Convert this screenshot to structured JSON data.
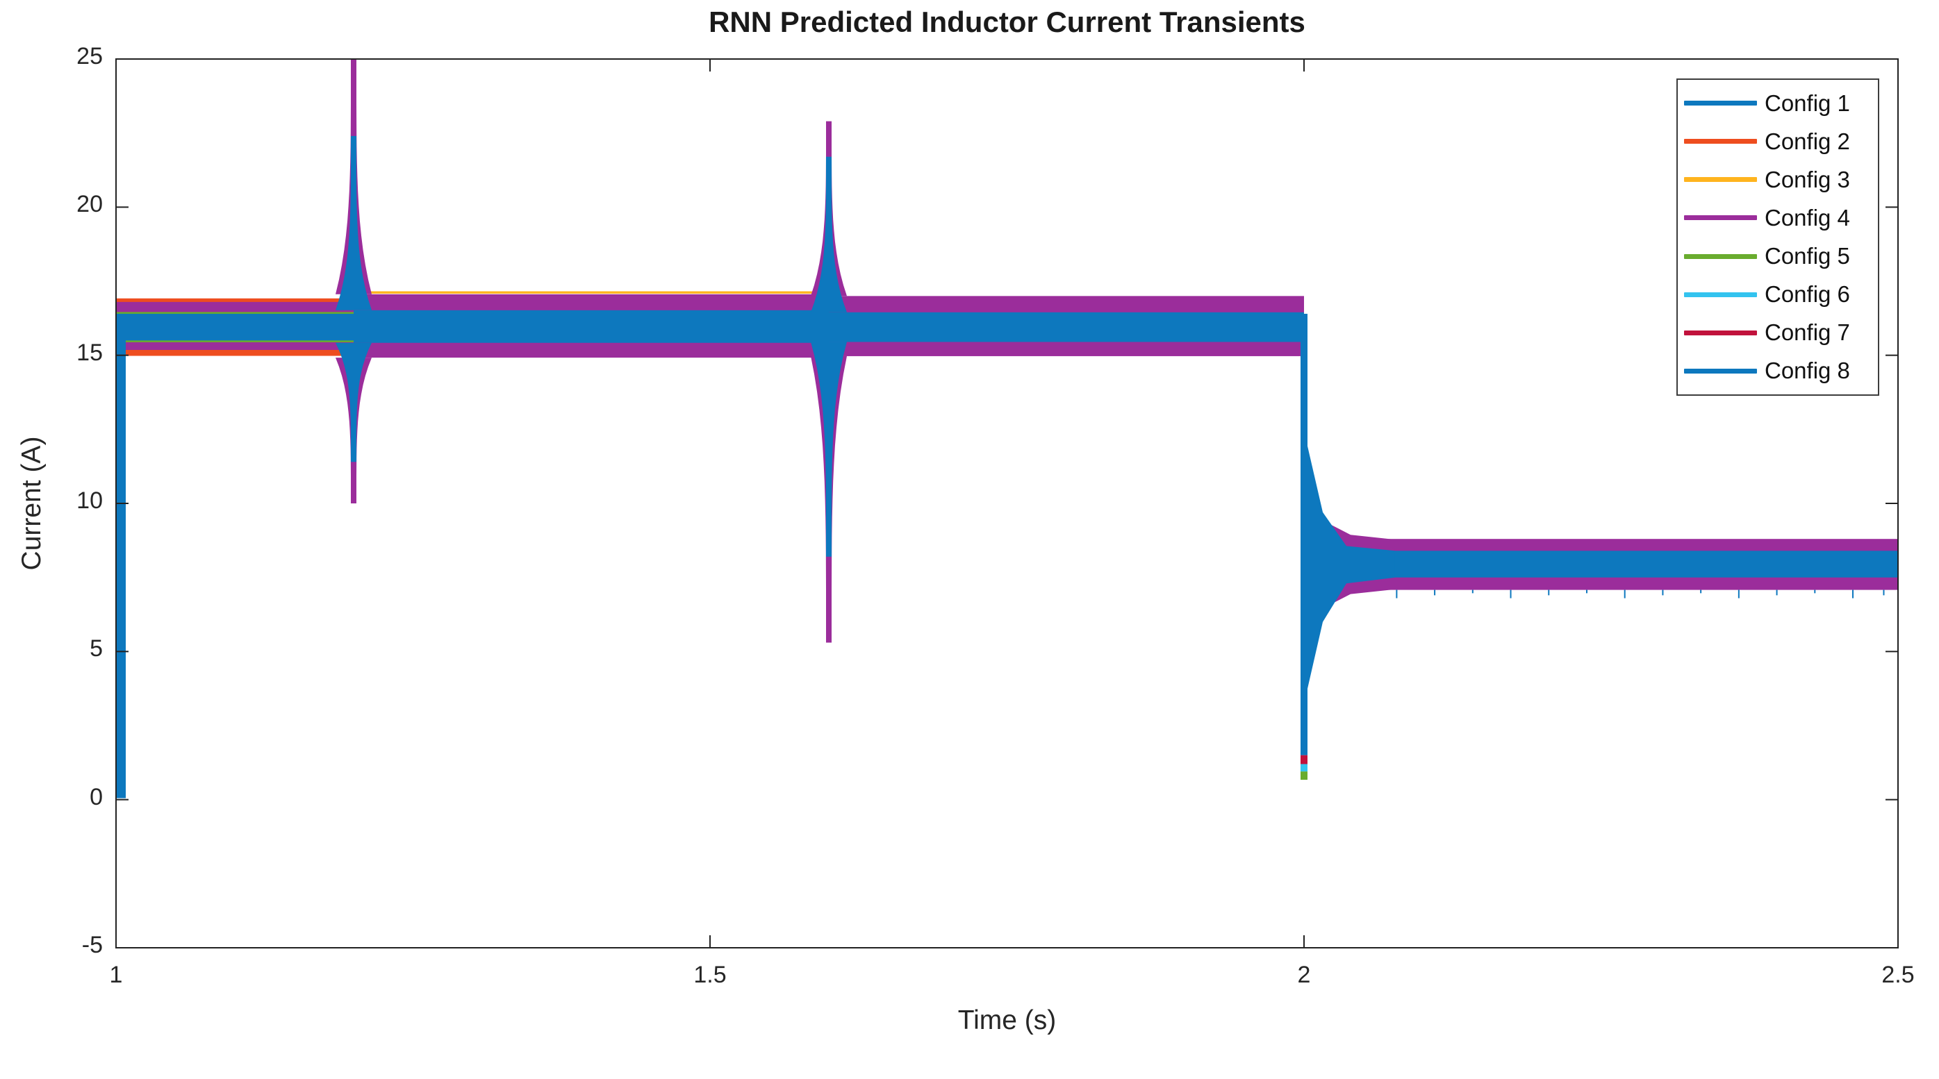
{
  "chart_data": {
    "type": "line",
    "title": "RNN Predicted Inductor Current Transients",
    "xlabel": "Time (s)",
    "ylabel": "Current (A)",
    "xlim": [
      1,
      2.5
    ],
    "ylim": [
      -5,
      25
    ],
    "grid": false,
    "box": true,
    "tick_direction": "in",
    "xticks": [
      {
        "value": 1.0,
        "label": "1"
      },
      {
        "value": 1.5,
        "label": "1.5"
      },
      {
        "value": 2.0,
        "label": "2"
      },
      {
        "value": 2.5,
        "label": "2.5"
      }
    ],
    "yticks": [
      {
        "value": 25,
        "label": "25"
      },
      {
        "value": 20,
        "label": "20"
      },
      {
        "value": 15,
        "label": "15"
      },
      {
        "value": 10,
        "label": "10"
      },
      {
        "value": 5,
        "label": "5"
      },
      {
        "value": 0,
        "label": "0"
      },
      {
        "value": -5,
        "label": "-5"
      }
    ],
    "legend": {
      "position": "northeast",
      "entries": [
        {
          "label": "Config 1",
          "color": "#0D78BE"
        },
        {
          "label": "Config 2",
          "color": "#EE4D1F"
        },
        {
          "label": "Config 3",
          "color": "#FFB41E"
        },
        {
          "label": "Config 4",
          "color": "#9B2D9B"
        },
        {
          "label": "Config 5",
          "color": "#69AC2E"
        },
        {
          "label": "Config 6",
          "color": "#33C3EF"
        },
        {
          "label": "Config 7",
          "color": "#C1123C"
        },
        {
          "label": "Config 8",
          "color": "#0D78BE"
        }
      ]
    },
    "waveform_note": "Eight overlaid high-frequency switching-ripple currents; values below are the visible envelope bounds in amperes",
    "ripple_bands": [
      {
        "t_start": 1.0,
        "t_end": 1.2,
        "layers": [
          {
            "series": "Config 2",
            "color": "#EE4D1F",
            "lo": 14.98,
            "hi": 16.92
          },
          {
            "series": "Config 4",
            "color": "#9B2D9B",
            "lo": 15.18,
            "hi": 16.8
          },
          {
            "series": "Config 5",
            "color": "#69AC2E",
            "lo": 16.38,
            "hi": 16.46
          },
          {
            "series": "Config 5",
            "color": "#69AC2E",
            "lo": 15.44,
            "hi": 15.52
          },
          {
            "series": "Config 8",
            "color": "#0D78BE",
            "lo": 15.5,
            "hi": 16.4
          }
        ]
      },
      {
        "t_start": 1.2,
        "t_end": 1.6,
        "layers": [
          {
            "series": "Config 3",
            "color": "#FFB41E",
            "lo": 17.08,
            "hi": 17.16
          },
          {
            "series": "Config 4",
            "color": "#9B2D9B",
            "lo": 14.92,
            "hi": 17.06
          },
          {
            "series": "Config 8",
            "color": "#0D78BE",
            "lo": 15.42,
            "hi": 16.52
          }
        ]
      },
      {
        "t_start": 1.6,
        "t_end": 2.0,
        "layers": [
          {
            "series": "Config 4",
            "color": "#9B2D9B",
            "lo": 14.97,
            "hi": 17.0
          },
          {
            "series": "Config 8",
            "color": "#0D78BE",
            "lo": 15.45,
            "hi": 16.45
          }
        ]
      },
      {
        "t_start": 2.068,
        "t_end": 2.5,
        "layers": [
          {
            "series": "Config 4",
            "color": "#9B2D9B",
            "lo": 7.08,
            "hi": 8.8
          },
          {
            "series": "Config 8",
            "color": "#0D78BE",
            "lo": 7.5,
            "hi": 8.4
          }
        ]
      }
    ],
    "events": [
      {
        "type": "startup",
        "t": 1.0,
        "color": "#0D78BE",
        "from": 0.05,
        "to": 16.4
      },
      {
        "type": "spike",
        "t": 1.2,
        "outer": {
          "color": "#9B2D9B",
          "hi": 25.0,
          "lo": 10.0,
          "base_hi": 17.06,
          "base_lo": 14.92
        },
        "inner": {
          "color": "#0D78BE",
          "hi": 22.4,
          "lo": 11.4,
          "base_hi": 16.52,
          "base_lo": 15.42
        }
      },
      {
        "type": "spike",
        "t": 1.6,
        "outer": {
          "color": "#9B2D9B",
          "hi": 22.9,
          "lo": 5.3,
          "base_hi": 17.0,
          "base_lo": 14.97
        },
        "inner": {
          "color": "#0D78BE",
          "hi": 21.7,
          "lo": 8.2,
          "base_hi": 16.45,
          "base_lo": 15.45
        }
      },
      {
        "type": "step",
        "t": 2.0,
        "needle_color": "#0D78BE",
        "needle_from": 16.4,
        "needle_to": 1.5,
        "tips": [
          {
            "color": "#C1123C",
            "from": 1.5,
            "to": 1.2
          },
          {
            "color": "#33C3EF",
            "from": 1.2,
            "to": 0.95
          },
          {
            "color": "#69AC2E",
            "from": 0.95,
            "to": 0.67
          }
        ],
        "settle_purple": {
          "color": "#9B2D9B",
          "hi": 8.8,
          "lo": 7.08
        },
        "settle_blue": {
          "color": "#0D78BE",
          "hi": 8.4,
          "lo": 7.5
        },
        "settle_time": 2.068
      }
    ],
    "micro_ticks": {
      "color": "#0D78BE",
      "from": 7.08,
      "to": 6.8,
      "times": [
        2.078,
        2.11,
        2.142,
        2.174,
        2.206,
        2.238,
        2.27,
        2.302,
        2.334,
        2.366,
        2.398,
        2.43,
        2.462,
        2.488
      ]
    },
    "axis_color": "#222222"
  }
}
